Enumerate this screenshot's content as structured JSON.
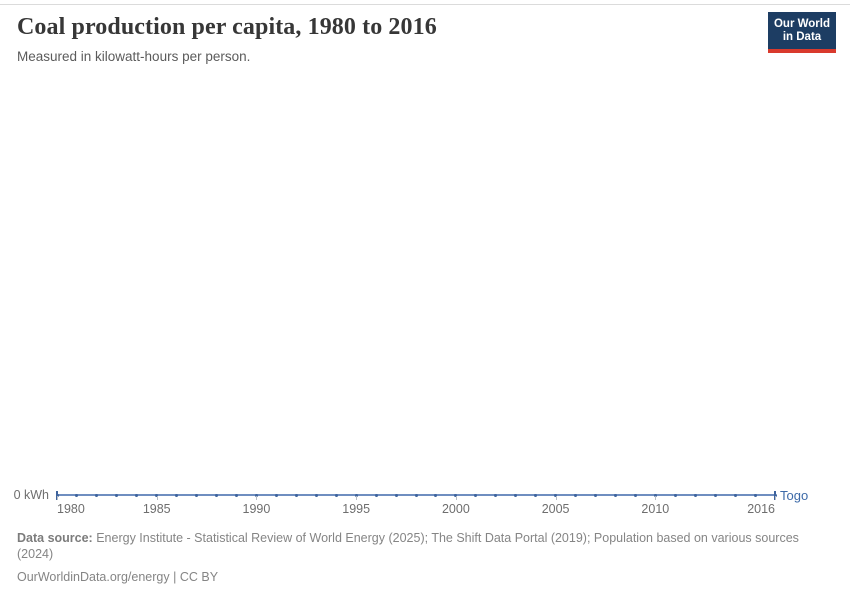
{
  "header": {
    "title": "Coal production per capita, 1980 to 2016",
    "subtitle": "Measured in kilowatt-hours per person."
  },
  "logo": {
    "line1": "Our World",
    "line2": "in Data"
  },
  "chart_data": {
    "type": "line",
    "title": "Coal production per capita, 1980 to 2016",
    "subtitle": "Measured in kilowatt-hours per person.",
    "unit": "kilowatt-hours per person",
    "y_zero_label": "0 kWh",
    "x": [
      1980,
      1981,
      1982,
      1983,
      1984,
      1985,
      1986,
      1987,
      1988,
      1989,
      1990,
      1991,
      1992,
      1993,
      1994,
      1995,
      1996,
      1997,
      1998,
      1999,
      2000,
      2001,
      2002,
      2003,
      2004,
      2005,
      2006,
      2007,
      2008,
      2009,
      2010,
      2011,
      2012,
      2013,
      2014,
      2015,
      2016
    ],
    "series": [
      {
        "name": "Togo",
        "values": [
          0,
          0,
          0,
          0,
          0,
          0,
          0,
          0,
          0,
          0,
          0,
          0,
          0,
          0,
          0,
          0,
          0,
          0,
          0,
          0,
          0,
          0,
          0,
          0,
          0,
          0,
          0,
          0,
          0,
          0,
          0,
          0,
          0,
          0,
          0,
          0,
          0
        ]
      }
    ],
    "x_ticks": [
      1980,
      1985,
      1990,
      1995,
      2000,
      2005,
      2010,
      2016
    ],
    "ylim": [
      0,
      0
    ],
    "grid": false,
    "legend_position": "right-of-line",
    "colors": {
      "line": "#6f8ec0",
      "marker": "#3e639d",
      "entity_label": "#3d6aa8",
      "tick": "#b6bcc4",
      "axis_text": "#6e6e6e"
    }
  },
  "footer": {
    "source_label": "Data source:",
    "source_text": "Energy Institute - Statistical Review of World Energy (2025); The Shift Data Portal (2019); Population based on various sources (2024)",
    "license_url": "OurWorldinData.org/energy",
    "license_suffix": "| CC BY"
  },
  "brand_colors": {
    "navy": "#1d3d63",
    "red": "#d93a2d"
  }
}
